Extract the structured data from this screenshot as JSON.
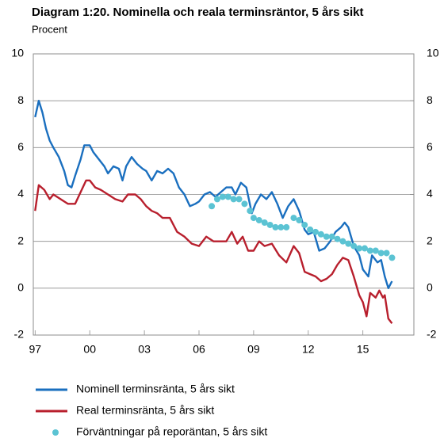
{
  "chart_data": {
    "type": "line",
    "title": "Diagram 1:20. Nominella och reala terminsräntor, 5 års sikt",
    "subtitle": "Procent",
    "xlim": [
      1996.9,
      2017.8
    ],
    "xticks": [
      {
        "value": 1997,
        "label": "97"
      },
      {
        "value": 2000,
        "label": "00"
      },
      {
        "value": 2003,
        "label": "03"
      },
      {
        "value": 2006,
        "label": "06"
      },
      {
        "value": 2009,
        "label": "09"
      },
      {
        "value": 2012,
        "label": "12"
      },
      {
        "value": 2015,
        "label": "15"
      }
    ],
    "ylim": [
      -2,
      10
    ],
    "yticks": [
      -2,
      0,
      2,
      4,
      6,
      8,
      10
    ],
    "y2lim": [
      -2,
      10
    ],
    "y2ticks": [
      -2,
      0,
      2,
      4,
      6,
      8,
      10
    ],
    "grid": true,
    "legend": "bottom",
    "series": [
      {
        "name": "Nominell terminsränta, 5 års sikt",
        "type": "line",
        "color": "#1a6fbf",
        "x": [
          1997.0,
          1997.2,
          1997.4,
          1997.6,
          1997.8,
          1998.0,
          1998.3,
          1998.6,
          1998.8,
          1999.0,
          1999.2,
          1999.5,
          1999.7,
          2000.0,
          2000.2,
          2000.5,
          2000.8,
          2001.0,
          2001.3,
          2001.6,
          2001.8,
          2002.0,
          2002.3,
          2002.6,
          2002.9,
          2003.1,
          2003.4,
          2003.7,
          2004.0,
          2004.3,
          2004.6,
          2004.9,
          2005.2,
          2005.5,
          2005.8,
          2006.0,
          2006.3,
          2006.6,
          2006.9,
          2007.2,
          2007.5,
          2007.8,
          2008.0,
          2008.3,
          2008.6,
          2008.9,
          2009.1,
          2009.4,
          2009.7,
          2010.0,
          2010.3,
          2010.6,
          2010.9,
          2011.2,
          2011.5,
          2011.8,
          2012.0,
          2012.3,
          2012.6,
          2012.9,
          2013.2,
          2013.5,
          2013.8,
          2014.0,
          2014.2,
          2014.5,
          2014.8,
          2015.0,
          2015.3,
          2015.5,
          2015.8,
          2016.0,
          2016.2,
          2016.4,
          2016.6
        ],
        "values": [
          7.3,
          8.0,
          7.5,
          6.8,
          6.3,
          6.0,
          5.6,
          5.0,
          4.4,
          4.3,
          4.8,
          5.5,
          6.1,
          6.1,
          5.8,
          5.5,
          5.2,
          4.9,
          5.2,
          5.1,
          4.6,
          5.2,
          5.6,
          5.3,
          5.1,
          5.0,
          4.6,
          5.0,
          4.9,
          5.1,
          4.9,
          4.3,
          4.0,
          3.5,
          3.6,
          3.7,
          4.0,
          4.1,
          3.9,
          4.1,
          4.3,
          4.3,
          4.0,
          4.5,
          4.3,
          3.2,
          3.6,
          4.0,
          3.8,
          4.1,
          3.6,
          3.0,
          3.5,
          3.8,
          3.3,
          2.5,
          2.3,
          2.4,
          1.6,
          1.7,
          2.0,
          2.4,
          2.6,
          2.8,
          2.6,
          1.8,
          1.4,
          0.8,
          0.5,
          1.4,
          1.1,
          1.2,
          0.5,
          0.0,
          0.3
        ]
      },
      {
        "name": "Real terminsränta, 5 års sikt",
        "type": "line",
        "color": "#b81f2d",
        "x": [
          1997.0,
          1997.2,
          1997.5,
          1997.8,
          1998.0,
          1998.4,
          1998.8,
          1999.2,
          1999.5,
          1999.8,
          2000.0,
          2000.3,
          2000.6,
          2001.0,
          2001.4,
          2001.8,
          2002.1,
          2002.5,
          2002.8,
          2003.1,
          2003.4,
          2003.7,
          2004.0,
          2004.4,
          2004.8,
          2005.2,
          2005.6,
          2006.0,
          2006.4,
          2006.8,
          2007.2,
          2007.5,
          2007.8,
          2008.1,
          2008.4,
          2008.7,
          2009.0,
          2009.3,
          2009.6,
          2010.0,
          2010.4,
          2010.8,
          2011.2,
          2011.5,
          2011.8,
          2012.1,
          2012.4,
          2012.7,
          2013.0,
          2013.3,
          2013.6,
          2013.9,
          2014.2,
          2014.5,
          2014.8,
          2015.0,
          2015.2,
          2015.4,
          2015.7,
          2015.9,
          2016.1,
          2016.2,
          2016.4,
          2016.6
        ],
        "values": [
          3.3,
          4.4,
          4.2,
          3.8,
          4.0,
          3.8,
          3.6,
          3.6,
          4.1,
          4.6,
          4.6,
          4.3,
          4.2,
          4.0,
          3.8,
          3.7,
          4.0,
          4.0,
          3.8,
          3.5,
          3.3,
          3.2,
          3.0,
          3.0,
          2.4,
          2.2,
          1.9,
          1.8,
          2.2,
          2.0,
          2.0,
          2.0,
          2.4,
          1.9,
          2.2,
          1.6,
          1.6,
          2.0,
          1.8,
          1.9,
          1.4,
          1.1,
          1.8,
          1.5,
          0.7,
          0.6,
          0.5,
          0.3,
          0.4,
          0.6,
          1.0,
          1.3,
          1.2,
          0.5,
          -0.3,
          -0.6,
          -1.2,
          -0.2,
          -0.4,
          -0.1,
          -0.4,
          -0.3,
          -1.3,
          -1.5
        ]
      },
      {
        "name": "Förväntningar på reporäntan, 5 års sikt",
        "type": "scatter",
        "color": "#5bc3d3",
        "x": [
          2006.7,
          2007.0,
          2007.3,
          2007.6,
          2007.9,
          2008.2,
          2008.5,
          2008.8,
          2009.0,
          2009.3,
          2009.6,
          2009.9,
          2010.2,
          2010.5,
          2010.8,
          2011.2,
          2011.5,
          2011.8,
          2012.1,
          2012.4,
          2012.7,
          2013.0,
          2013.3,
          2013.6,
          2013.9,
          2014.2,
          2014.5,
          2014.8,
          2015.1,
          2015.4,
          2015.7,
          2016.0,
          2016.3,
          2016.6
        ],
        "values": [
          3.5,
          3.8,
          3.9,
          3.9,
          3.8,
          3.8,
          3.6,
          3.3,
          3.0,
          2.9,
          2.8,
          2.7,
          2.6,
          2.6,
          2.6,
          3.0,
          2.9,
          2.7,
          2.5,
          2.4,
          2.3,
          2.2,
          2.2,
          2.1,
          2.0,
          1.9,
          1.8,
          1.7,
          1.7,
          1.6,
          1.6,
          1.5,
          1.5,
          1.3
        ]
      }
    ]
  }
}
